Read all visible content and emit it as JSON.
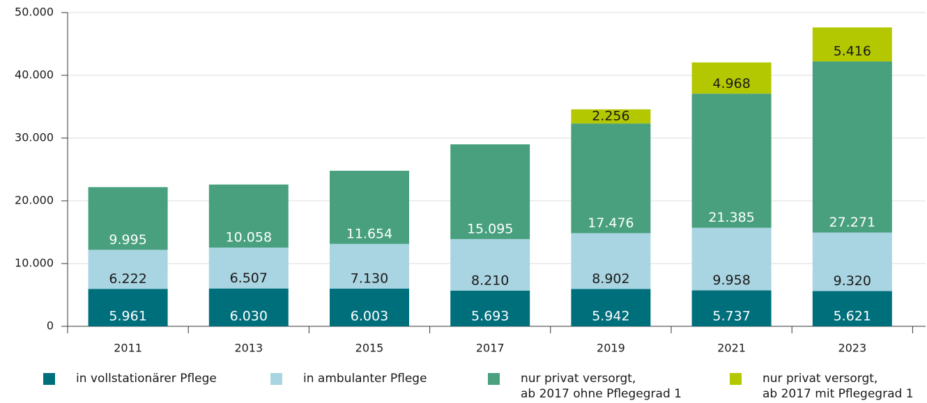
{
  "chart_data": {
    "type": "stacked_bar",
    "categories": [
      "2011",
      "2013",
      "2015",
      "2017",
      "2019",
      "2021",
      "2023"
    ],
    "series": [
      {
        "name": "in vollstationärer Pflege",
        "color": "#006f7c",
        "label_color": "#ffffff",
        "values": [
          5961,
          6030,
          6003,
          5693,
          5942,
          5737,
          5621
        ],
        "value_labels": [
          "5.961",
          "6.030",
          "6.003",
          "5.693",
          "5.942",
          "5.737",
          "5.621"
        ]
      },
      {
        "name": "in ambulanter Pflege",
        "color": "#a9d4e1",
        "label_color": "#1a1a1a",
        "values": [
          6222,
          6507,
          7130,
          8210,
          8902,
          9958,
          9320
        ],
        "value_labels": [
          "6.222",
          "6.507",
          "7.130",
          "8.210",
          "8.902",
          "9.958",
          "9.320"
        ]
      },
      {
        "name": "nur privat versorgt,\nab 2017 ohne Pflegegrad 1",
        "color": "#48a07f",
        "label_color": "#ffffff",
        "values": [
          9995,
          10058,
          11654,
          15095,
          17476,
          21385,
          27271
        ],
        "value_labels": [
          "9.995",
          "10.058",
          "11.654",
          "15.095",
          "17.476",
          "21.385",
          "27.271"
        ]
      },
      {
        "name": "nur privat versorgt,\nab 2017 mit Pflegegrad 1",
        "color": "#b3c800",
        "label_color": "#1a1a1a",
        "values": [
          null,
          null,
          null,
          null,
          2256,
          4968,
          5416
        ],
        "value_labels": [
          null,
          null,
          null,
          null,
          "2.256",
          "4.968",
          "5.416"
        ]
      }
    ],
    "ylim": [
      0,
      50000
    ],
    "yticks": [
      0,
      {
        "value": 10000,
        "label": "10.000"
      },
      {
        "value": 20000,
        "label": "20.000"
      },
      {
        "value": 30000,
        "label": "30.000"
      },
      {
        "value": 40000,
        "label": "40.000"
      },
      {
        "value": 50000,
        "label": "50.000"
      }
    ],
    "grid": true,
    "legend": "bottom"
  }
}
